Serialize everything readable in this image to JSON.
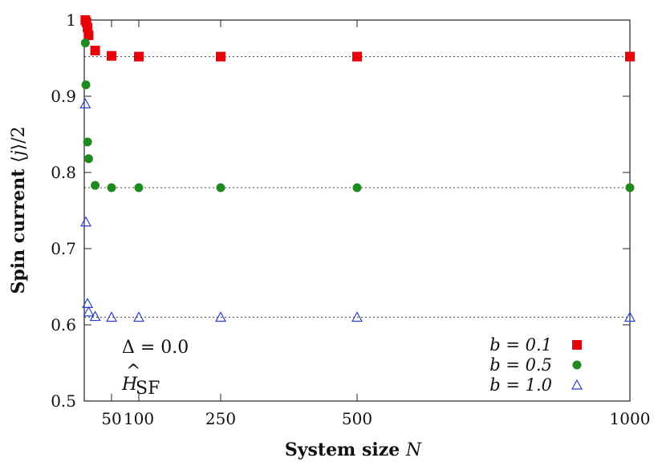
{
  "chart_data": {
    "type": "scatter",
    "xlabel": "System size N",
    "ylabel": "Spin current ⟨j⟩/2",
    "xlim": [
      0,
      1000
    ],
    "ylim": [
      0.5,
      1.0
    ],
    "xticks": [
      50,
      100,
      250,
      500,
      1000
    ],
    "xtick_labels": [
      "50",
      "100",
      "250",
      "500",
      "1000"
    ],
    "yticks": [
      0.5,
      0.6,
      0.7,
      0.8,
      0.9,
      1.0
    ],
    "ytick_labels": [
      "0.5",
      "0.6",
      "0.7",
      "0.8",
      "0.9",
      "1"
    ],
    "grid": false,
    "legend_position": "bottom-right",
    "annotations": [
      "Δ = 0.0",
      "Ĥ_SF"
    ],
    "reference_lines": [
      0.952,
      0.78,
      0.61
    ],
    "series": [
      {
        "name": "b = 0.1",
        "marker": "square",
        "color": "#e8000b",
        "x": [
          2,
          4,
          6,
          8,
          20,
          50,
          100,
          250,
          500,
          1000
        ],
        "y": [
          1.0,
          0.997,
          0.99,
          0.98,
          0.96,
          0.953,
          0.952,
          0.952,
          0.952,
          0.952
        ]
      },
      {
        "name": "b = 0.5",
        "marker": "circle",
        "color": "#1f8a1f",
        "x": [
          2,
          3,
          6,
          8,
          20,
          50,
          100,
          250,
          500,
          1000
        ],
        "y": [
          0.97,
          0.915,
          0.84,
          0.818,
          0.783,
          0.78,
          0.78,
          0.78,
          0.78,
          0.78
        ]
      },
      {
        "name": "b = 1.0",
        "marker": "triangle-open",
        "color": "#2b3fd6",
        "x": [
          2,
          3,
          6,
          8,
          20,
          50,
          100,
          250,
          500,
          1000
        ],
        "y": [
          0.89,
          0.735,
          0.628,
          0.617,
          0.611,
          0.61,
          0.61,
          0.61,
          0.61,
          0.61
        ]
      }
    ]
  }
}
